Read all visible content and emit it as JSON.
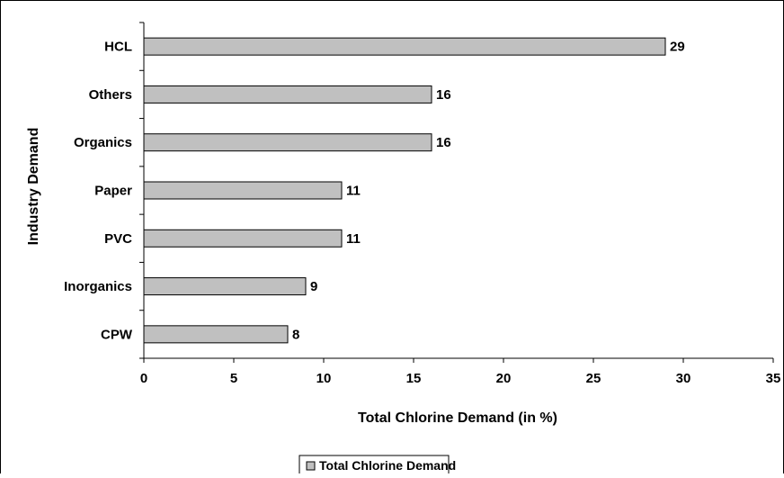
{
  "chart_data": {
    "type": "bar",
    "orientation": "horizontal",
    "categories": [
      "HCL",
      "Others",
      "Organics",
      "Paper",
      "PVC",
      "Inorganics",
      "CPW"
    ],
    "series": [
      {
        "name": "Total Chlorine Demand",
        "values": [
          29,
          16,
          16,
          11,
          11,
          9,
          8
        ],
        "color": "#c0c0c0"
      }
    ],
    "xlabel": "Total Chlorine Demand (in %)",
    "ylabel": "Industry Demand",
    "xlim": [
      0,
      35
    ],
    "xticks": [
      "0",
      "5",
      "10",
      "15",
      "20",
      "25",
      "30",
      "35"
    ],
    "grid": false,
    "data_labels": true,
    "legend_position": "bottom"
  }
}
